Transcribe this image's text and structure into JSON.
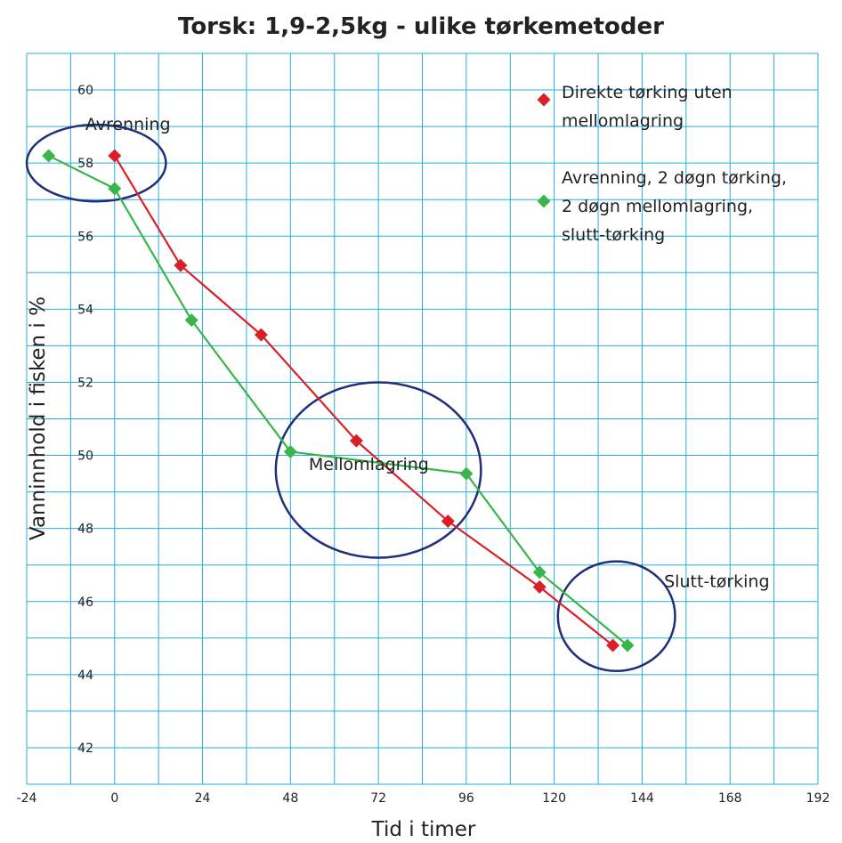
{
  "chart_data": {
    "type": "line",
    "title": "Torsk: 1,9-2,5kg - ulike tørkemetoder",
    "xlabel": "Tid i timer",
    "ylabel": "Vanninnhold i fisken i %",
    "xlim": [
      -24,
      192
    ],
    "ylim": [
      41,
      61
    ],
    "x_ticks": [
      -24,
      0,
      24,
      48,
      72,
      96,
      120,
      144,
      168,
      192
    ],
    "y_ticks": [
      42,
      44,
      46,
      48,
      50,
      52,
      54,
      56,
      58,
      60
    ],
    "grid": true,
    "legend_position": "top-right",
    "series": [
      {
        "name": "Direkte tørking uten mellomlagring",
        "color": "#d92027",
        "marker": "diamond",
        "points": [
          [
            0,
            58.2
          ],
          [
            18,
            55.2
          ],
          [
            40,
            53.3
          ],
          [
            66,
            50.4
          ],
          [
            91,
            48.2
          ],
          [
            116,
            46.4
          ],
          [
            136,
            44.8
          ]
        ]
      },
      {
        "name": "Avrenning, 2 døgn tørking, 2 døgn mellomlagring, slutt-tørking",
        "color": "#3ab54a",
        "marker": "diamond",
        "points": [
          [
            -18,
            58.2
          ],
          [
            0,
            57.3
          ],
          [
            21,
            53.7
          ],
          [
            48,
            50.1
          ],
          [
            96,
            49.5
          ],
          [
            116,
            46.8
          ],
          [
            140,
            44.8
          ]
        ]
      }
    ],
    "annotations": [
      {
        "text": "Avrenning",
        "x": -8,
        "y": 58.9
      },
      {
        "text": "Mellomlagring",
        "x": 53,
        "y": 49.6
      },
      {
        "text": "Slutt-tørking",
        "x": 150,
        "y": 46.4
      }
    ],
    "highlight_ellipses": [
      {
        "cx": -5,
        "cy": 58.0,
        "rx": 19,
        "ry": 1.05,
        "color": "#1f2f7a"
      },
      {
        "cx": 72,
        "cy": 49.6,
        "rx": 28,
        "ry": 2.4,
        "color": "#1f2f7a"
      },
      {
        "cx": 137,
        "cy": 45.6,
        "rx": 16,
        "ry": 1.5,
        "color": "#1f2f7a"
      }
    ],
    "grid_color": "#29abe2",
    "ellipse_color": "#1f2f7a"
  }
}
